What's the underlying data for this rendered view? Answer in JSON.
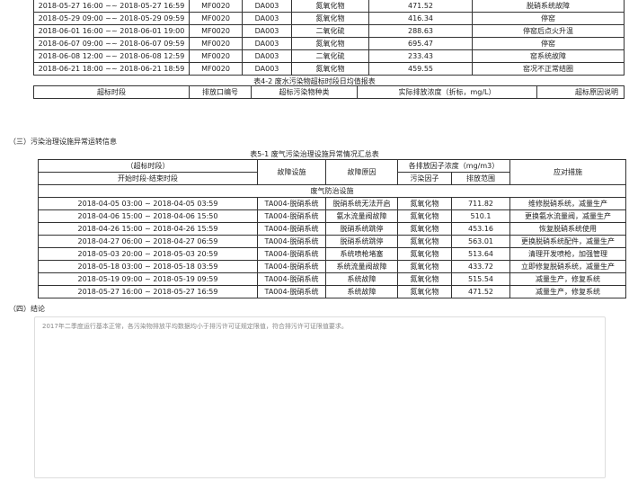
{
  "table4_1": {
    "rows": [
      [
        "2018-05-27 16:00 ~~ 2018-05-27 16:59",
        "MF0020",
        "DA003",
        "氮氧化物",
        "471.52",
        "脱硝系统故障"
      ],
      [
        "2018-05-29 09:00 ~~ 2018-05-29 09:59",
        "MF0020",
        "DA003",
        "氮氧化物",
        "416.34",
        "停窑"
      ],
      [
        "2018-06-01 16:00 ~~ 2018-06-01 19:00",
        "MF0020",
        "DA003",
        "二氧化硫",
        "288.63",
        "停窑后点火升温"
      ],
      [
        "2018-06-07 09:00 ~~ 2018-06-07 09:59",
        "MF0020",
        "DA003",
        "氮氧化物",
        "695.47",
        "停窑"
      ],
      [
        "2018-06-08 12:00 ~~ 2018-06-08 12:59",
        "MF0020",
        "DA003",
        "二氧化硫",
        "233.43",
        "窑系统故障"
      ],
      [
        "2018-06-21 18:00 ~~ 2018-06-21 18:59",
        "MF0020",
        "DA003",
        "氮氧化物",
        "459.55",
        "窑况不正常结圈"
      ]
    ]
  },
  "table4_2": {
    "caption": "表4-2 废水污染物超标时段日均值报表",
    "headers": [
      "超标时段",
      "排放口编号",
      "超标污染物种类",
      "实际排放浓度（折标，mg/L）",
      "超标原因说明"
    ]
  },
  "section3": "（三）污染治理设施异常运转信息",
  "table5_1": {
    "caption": "表5-1 废气污染治理设施异常情况汇总表",
    "h_period": "（超标时段）",
    "h_start_end": "开始时段-结束时段",
    "h_facility": "故障设施",
    "h_reason": "故障原因",
    "h_conc": "各排放因子浓度（mg/m3）",
    "h_factor": "污染因子",
    "h_range": "排放范围",
    "h_measure": "应对措施",
    "group": "废气防治设施",
    "rows": [
      [
        "2018-04-05 03:00 ~ 2018-04-05 03:59",
        "TA004-脱硝系统",
        "脱硝系统无法开启",
        "氮氧化物",
        "711.82",
        "维修脱硝系统，减量生产"
      ],
      [
        "2018-04-06 15:00 ~ 2018-04-06 15:50",
        "TA004-脱硝系统",
        "氨水流量阀故障",
        "氮氧化物",
        "510.1",
        "更换氨水流量阀，减量生产"
      ],
      [
        "2018-04-26 15:00 ~ 2018-04-26 15:59",
        "TA004-脱硝系统",
        "脱硝系统跳停",
        "氮氧化物",
        "453.16",
        "恢复脱硝系统使用"
      ],
      [
        "2018-04-27 06:00 ~ 2018-04-27 06:59",
        "TA004-脱硝系统",
        "脱硝系统跳停",
        "氮氧化物",
        "563.01",
        "更换脱硝系统配件，减量生产"
      ],
      [
        "2018-05-03 20:00 ~ 2018-05-03 20:59",
        "TA004-脱硝系统",
        "系统喷枪堵塞",
        "氮氧化物",
        "513.64",
        "清理开发喷枪，加强管理"
      ],
      [
        "2018-05-18 03:00 ~ 2018-05-18 03:59",
        "TA004-脱硝系统",
        "系统流量阀故障",
        "氮氧化物",
        "433.72",
        "立即修复脱硝系统，减量生产"
      ],
      [
        "2018-05-19 09:00 ~ 2018-05-19 09:59",
        "TA004-脱硝系统",
        "系统故障",
        "氮氧化物",
        "515.54",
        "减量生产，修复系统"
      ],
      [
        "2018-05-27 16:00 ~ 2018-05-27 16:59",
        "TA004-脱硝系统",
        "系统故障",
        "氮氧化物",
        "471.52",
        "减量生产，修复系统"
      ]
    ]
  },
  "section4": "（四）结论",
  "conclusion": "2017年二季度运行基本正常，各污染物排放平均数据均小于排污许可证规定限值，符合排污许可证限值要求。"
}
